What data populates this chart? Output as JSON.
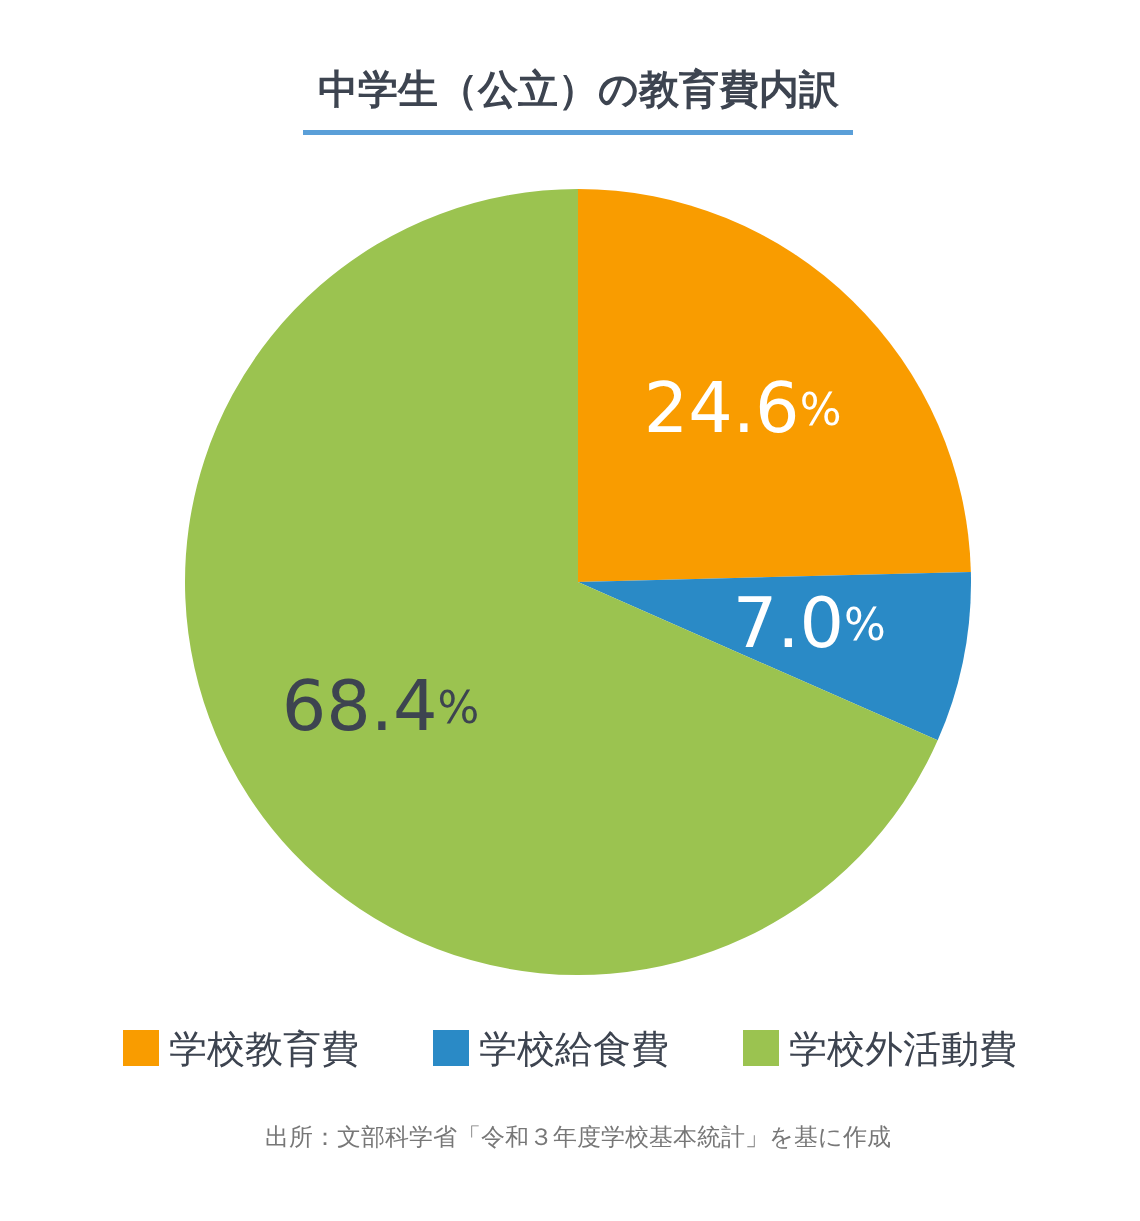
{
  "chart_data": {
    "type": "pie",
    "title": "中学生（公立）の教育費内訳",
    "categories": [
      "学校教育費",
      "学校給食費",
      "学校外活動費"
    ],
    "values": [
      24.6,
      7.0,
      68.4
    ],
    "colors": [
      "#f99c00",
      "#2a8ac6",
      "#9bc350"
    ],
    "value_labels": [
      "24.6%",
      "7.0%",
      "68.4%"
    ],
    "legend": "bottom",
    "annotations": [
      "出所：文部科学省「令和３年度学校基本統計」を基に作成"
    ]
  }
}
